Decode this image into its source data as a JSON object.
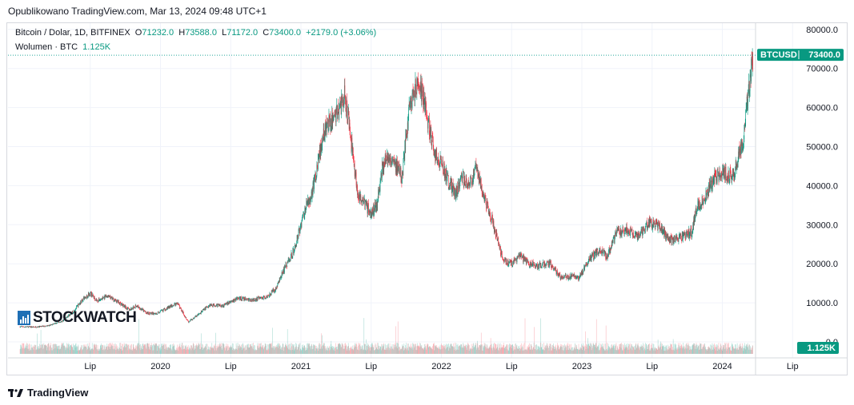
{
  "header": {
    "published": "Opublikowano TradingView.com, Mar 13, 2024 09:48 UTC+1"
  },
  "legend": {
    "symbol": "Bitcoin / Dolar, 1D, BITFINEX",
    "o_label": "O",
    "o_value": "71232.0",
    "h_label": "H",
    "h_value": "73588.0",
    "l_label": "L",
    "l_value": "71172.0",
    "c_label": "C",
    "c_value": "73400.0",
    "change": "+2179.0 (+3.06%)",
    "volume_label": "Wolumen · BTC",
    "volume_value": "1.125K"
  },
  "price_badge": {
    "ticker": "BTCUSD",
    "price": "73400.0"
  },
  "volume_badge": "1.125K",
  "watermark": "STOCKWATCH",
  "footer": {
    "brand": "TradingView"
  },
  "colors": {
    "up": "#089981",
    "down": "#f23645",
    "accent": "#26a69a",
    "grid": "#f0f3fa"
  },
  "chart_data": {
    "type": "candlestick",
    "y_ticks": [
      "80000.0",
      "70000.0",
      "60000.0",
      "50000.0",
      "40000.0",
      "30000.0",
      "20000.0",
      "10000.0",
      "0.0"
    ],
    "ylim": [
      0,
      80000
    ],
    "x_ticks": [
      "Lip",
      "2020",
      "Lip",
      "2021",
      "Lip",
      "2022",
      "Lip",
      "2023",
      "Lip",
      "2024",
      "Lip"
    ],
    "x_tick_dates": [
      2019.5,
      2020.0,
      2020.5,
      2021.0,
      2021.5,
      2022.0,
      2022.5,
      2023.0,
      2023.5,
      2024.0,
      2024.5
    ],
    "xlim": [
      2019.0,
      2024.75
    ],
    "series": [
      {
        "name": "BTCUSD",
        "points": [
          [
            2019.0,
            3900
          ],
          [
            2019.1,
            3800
          ],
          [
            2019.2,
            4100
          ],
          [
            2019.3,
            5300
          ],
          [
            2019.38,
            7800
          ],
          [
            2019.45,
            11000
          ],
          [
            2019.5,
            12500
          ],
          [
            2019.55,
            10500
          ],
          [
            2019.62,
            11700
          ],
          [
            2019.7,
            10200
          ],
          [
            2019.78,
            8200
          ],
          [
            2019.83,
            9300
          ],
          [
            2019.9,
            7400
          ],
          [
            2019.97,
            7200
          ],
          [
            2020.05,
            8700
          ],
          [
            2020.12,
            9900
          ],
          [
            2020.2,
            5100
          ],
          [
            2020.27,
            7000
          ],
          [
            2020.35,
            9500
          ],
          [
            2020.45,
            9300
          ],
          [
            2020.55,
            11200
          ],
          [
            2020.65,
            10700
          ],
          [
            2020.75,
            11500
          ],
          [
            2020.82,
            13500
          ],
          [
            2020.88,
            18500
          ],
          [
            2020.95,
            23500
          ],
          [
            2021.03,
            34000
          ],
          [
            2021.08,
            38000
          ],
          [
            2021.13,
            48000
          ],
          [
            2021.18,
            55000
          ],
          [
            2021.24,
            58000
          ],
          [
            2021.28,
            60000
          ],
          [
            2021.31,
            63500
          ],
          [
            2021.34,
            56000
          ],
          [
            2021.38,
            45000
          ],
          [
            2021.41,
            37000
          ],
          [
            2021.46,
            35000
          ],
          [
            2021.5,
            33000
          ],
          [
            2021.54,
            35000
          ],
          [
            2021.58,
            45000
          ],
          [
            2021.63,
            48000
          ],
          [
            2021.68,
            45000
          ],
          [
            2021.72,
            42000
          ],
          [
            2021.77,
            60000
          ],
          [
            2021.82,
            65000
          ],
          [
            2021.86,
            64000
          ],
          [
            2021.9,
            57000
          ],
          [
            2021.95,
            48000
          ],
          [
            2022.0,
            46000
          ],
          [
            2022.05,
            41000
          ],
          [
            2022.1,
            38000
          ],
          [
            2022.15,
            42000
          ],
          [
            2022.2,
            40000
          ],
          [
            2022.25,
            45000
          ],
          [
            2022.3,
            38000
          ],
          [
            2022.37,
            30000
          ],
          [
            2022.44,
            21000
          ],
          [
            2022.5,
            20000
          ],
          [
            2022.56,
            22000
          ],
          [
            2022.62,
            20000
          ],
          [
            2022.7,
            19500
          ],
          [
            2022.78,
            20000
          ],
          [
            2022.85,
            16500
          ],
          [
            2022.92,
            16800
          ],
          [
            2022.98,
            16500
          ],
          [
            2023.05,
            21000
          ],
          [
            2023.12,
            23500
          ],
          [
            2023.18,
            22000
          ],
          [
            2023.25,
            28000
          ],
          [
            2023.32,
            29000
          ],
          [
            2023.4,
            27000
          ],
          [
            2023.48,
            30500
          ],
          [
            2023.55,
            29500
          ],
          [
            2023.62,
            26000
          ],
          [
            2023.7,
            26500
          ],
          [
            2023.78,
            28000
          ],
          [
            2023.82,
            34500
          ],
          [
            2023.88,
            37000
          ],
          [
            2023.95,
            42500
          ],
          [
            2024.02,
            43000
          ],
          [
            2024.07,
            42000
          ],
          [
            2024.12,
            48000
          ],
          [
            2024.15,
            52000
          ],
          [
            2024.18,
            62000
          ],
          [
            2024.2,
            68000
          ],
          [
            2024.22,
            73400
          ]
        ]
      }
    ]
  }
}
